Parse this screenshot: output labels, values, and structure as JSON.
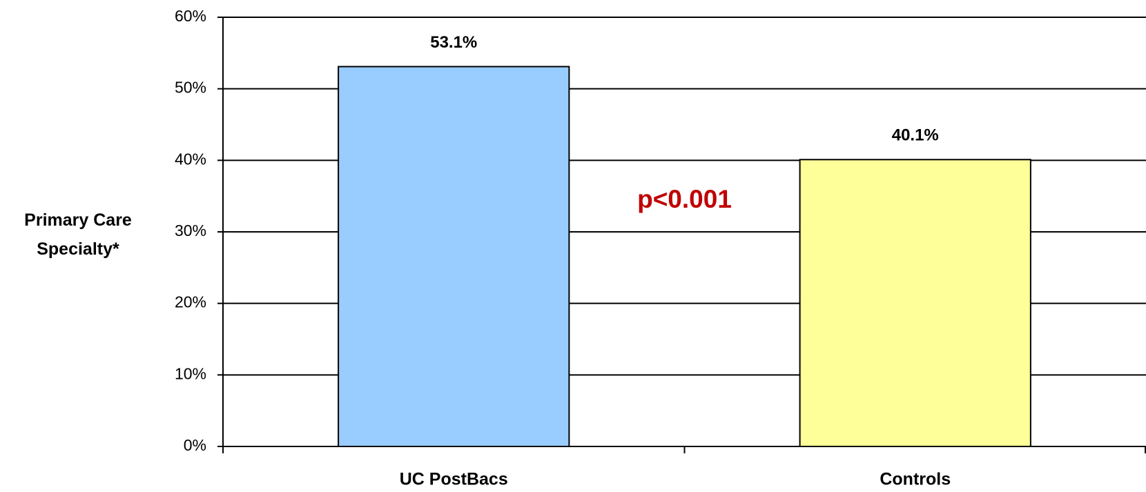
{
  "chart_data": {
    "type": "bar",
    "ylabel": "Primary Care Specialty*",
    "categories": [
      "UC PostBacs",
      "Controls"
    ],
    "values": [
      53.1,
      40.1
    ],
    "value_labels": [
      "53.1%",
      "40.1%"
    ],
    "colors": [
      "#99ccff",
      "#ffff99"
    ],
    "ylim": [
      0,
      60
    ],
    "yticks": [
      {
        "value": 0,
        "label": "0%"
      },
      {
        "value": 10,
        "label": "10%"
      },
      {
        "value": 20,
        "label": "20%"
      },
      {
        "value": 30,
        "label": "30%"
      },
      {
        "value": 40,
        "label": "40%"
      },
      {
        "value": 50,
        "label": "50%"
      },
      {
        "value": 60,
        "label": "60%"
      }
    ],
    "grid": true,
    "annotation": "p<0.001",
    "annotation_color": "#c00000"
  }
}
